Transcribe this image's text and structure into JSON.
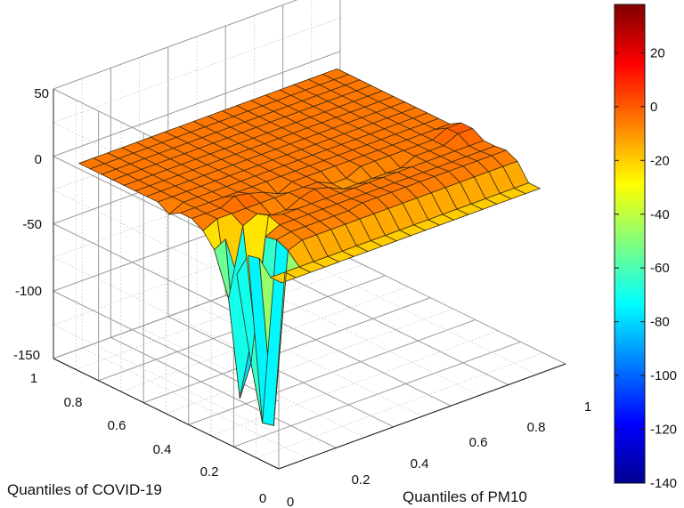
{
  "chart_data": {
    "type": "surface",
    "xlabel": "Quantiles of PM10",
    "ylabel": "Quantiles of COVID-19",
    "zlabel": "",
    "xlim": [
      0,
      1
    ],
    "ylim": [
      0,
      1
    ],
    "zlim": [
      -150,
      50
    ],
    "x_ticks": [
      "0",
      "0.2",
      "0.4",
      "0.6",
      "0.8",
      "1"
    ],
    "y_ticks": [
      "0",
      "0.2",
      "0.4",
      "0.6",
      "0.8",
      "1"
    ],
    "z_ticks": [
      "50",
      "0",
      "-50",
      "-100",
      "-150"
    ],
    "colorbar": {
      "range": [
        -140,
        38
      ],
      "ticks": [
        "20",
        "0",
        "-20",
        "-40",
        "-60",
        "-80",
        "-100",
        "-120",
        "-140"
      ],
      "colormap": "jet"
    },
    "grid": true,
    "x": [
      0.05,
      0.1,
      0.15,
      0.2,
      0.25,
      0.3,
      0.35,
      0.4,
      0.45,
      0.5,
      0.55,
      0.6,
      0.65,
      0.7,
      0.75,
      0.8,
      0.85,
      0.9,
      0.95
    ],
    "y": [
      0.05,
      0.1,
      0.15,
      0.2,
      0.25,
      0.3,
      0.35,
      0.4,
      0.45,
      0.5,
      0.55,
      0.6,
      0.65,
      0.7,
      0.75,
      0.8,
      0.85,
      0.9,
      0.95
    ],
    "z_rows": [
      [
        -20,
        -20,
        -20,
        -20,
        -20,
        -20,
        -20,
        -20,
        -20,
        -20,
        -20,
        -20,
        -20,
        -20,
        -20,
        -20,
        -20,
        -20,
        -20
      ],
      [
        -20,
        -20,
        -20,
        -20,
        -20,
        -20,
        -20,
        -20,
        -20,
        -20,
        -20,
        -20,
        -20,
        -20,
        -20,
        -20,
        -20,
        -20,
        -20
      ],
      [
        -10,
        -138,
        -12,
        -8,
        -8,
        -8,
        -8,
        -8,
        -8,
        -8,
        -8,
        -8,
        -8,
        -8,
        -8,
        -8,
        -8,
        -8,
        -8
      ],
      [
        -12,
        -140,
        -8,
        -6,
        -6,
        -6,
        -6,
        -6,
        -4,
        -4,
        -4,
        -4,
        -4,
        -4,
        -4,
        -4,
        -4,
        -4,
        -4
      ],
      [
        -30,
        -100,
        -10,
        -5,
        -5,
        -5,
        -5,
        -5,
        -5,
        -5,
        -5,
        -5,
        -5,
        -5,
        -5,
        -5,
        -5,
        -5,
        -5
      ],
      [
        -8,
        -130,
        -80,
        -2,
        -5,
        -5,
        -5,
        -5,
        -5,
        -5,
        -5,
        -5,
        -5,
        -5,
        -5,
        -5,
        -5,
        -5,
        -5
      ],
      [
        -20,
        -60,
        -10,
        -5,
        -10,
        -10,
        -5,
        -2,
        -5,
        -10,
        -10,
        -10,
        -10,
        -10,
        -5,
        -5,
        -5,
        0,
        0
      ],
      [
        -10,
        -5,
        -5,
        -5,
        -5,
        -5,
        -5,
        -5,
        -5,
        -10,
        -10,
        -5,
        -5,
        -5,
        -5,
        -5,
        -5,
        0,
        0
      ],
      [
        -5,
        -5,
        -5,
        0,
        -2,
        -5,
        -10,
        -5,
        -5,
        -5,
        -5,
        -5,
        -5,
        -5,
        -5,
        -5,
        -5,
        -5,
        -5
      ],
      [
        -5,
        -5,
        -5,
        -5,
        -5,
        -5,
        -5,
        -5,
        -5,
        -5,
        -5,
        -5,
        -5,
        -5,
        -5,
        -5,
        -5,
        -5,
        -5
      ],
      [
        -10,
        -5,
        -5,
        -5,
        -5,
        -5,
        -5,
        -5,
        -5,
        -5,
        -5,
        -5,
        -5,
        -5,
        -5,
        -5,
        -5,
        -5,
        -5
      ],
      [
        -5,
        -5,
        -5,
        -5,
        -5,
        -5,
        -5,
        -5,
        -5,
        -5,
        -5,
        -5,
        -5,
        -5,
        -5,
        -5,
        -5,
        -5,
        -5
      ],
      [
        -5,
        -5,
        -5,
        -5,
        -5,
        -5,
        -5,
        -5,
        -5,
        -5,
        -5,
        -5,
        -5,
        -5,
        -5,
        -5,
        -5,
        -5,
        -5
      ],
      [
        -5,
        -5,
        -5,
        -5,
        -5,
        -5,
        -5,
        -5,
        -5,
        -5,
        -5,
        -5,
        -5,
        -5,
        -5,
        -5,
        -5,
        -5,
        -5
      ],
      [
        -5,
        -5,
        -5,
        -5,
        -5,
        -5,
        -5,
        -5,
        -5,
        -5,
        -5,
        -5,
        -5,
        -5,
        -5,
        -5,
        -5,
        -5,
        -5
      ],
      [
        -5,
        -5,
        -5,
        -5,
        -5,
        -5,
        -5,
        -5,
        -5,
        -5,
        -5,
        -5,
        -5,
        -5,
        -5,
        -5,
        -5,
        -5,
        -5
      ],
      [
        -5,
        -5,
        -5,
        -5,
        -5,
        -5,
        -5,
        -5,
        -5,
        -5,
        -5,
        -5,
        -5,
        -5,
        -5,
        -5,
        -5,
        -5,
        -5
      ],
      [
        -5,
        -5,
        -5,
        -5,
        -5,
        -5,
        -5,
        -5,
        -5,
        -5,
        -5,
        -5,
        -5,
        -5,
        -5,
        -5,
        -5,
        -5,
        -5
      ],
      [
        -5,
        -5,
        -5,
        -5,
        -5,
        -5,
        -5,
        -5,
        -5,
        -5,
        -5,
        -5,
        -5,
        -5,
        -5,
        -5,
        -5,
        -5,
        -5
      ]
    ]
  }
}
